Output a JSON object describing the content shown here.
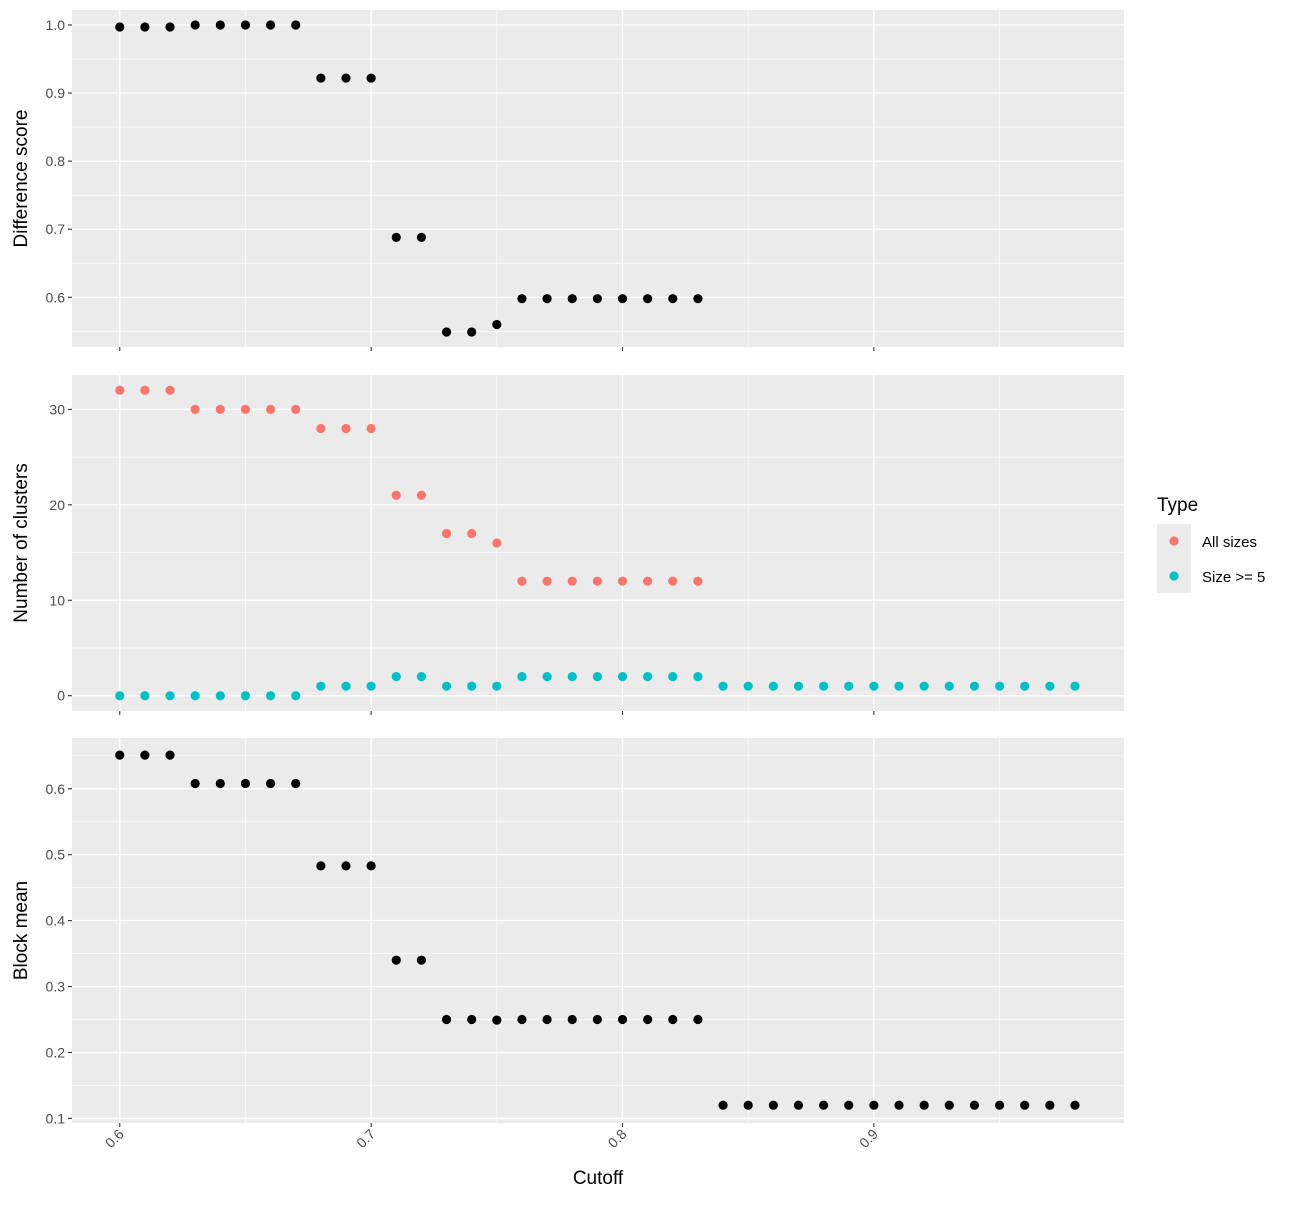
{
  "chart_data": {
    "type": "scatter",
    "xlabel": "Cutoff",
    "xlim": [
      0.581,
      0.9995
    ],
    "xticks": [
      0.6,
      0.7,
      0.8,
      0.9
    ],
    "x_tick_labels": [
      "0.6",
      "0.7",
      "0.8",
      "0.9"
    ],
    "grid": true,
    "legend": {
      "title": "Type",
      "placement": "right",
      "entries": [
        {
          "label": "All sizes",
          "color": "#F8766D"
        },
        {
          "label": "Size >= 5",
          "color": "#00BFC4"
        }
      ]
    },
    "panels": [
      {
        "id": "difference-score",
        "ylabel": "Difference score",
        "ylim": [
          0.527,
          1.022
        ],
        "yticks": [
          0.6,
          0.7,
          0.8,
          0.9,
          1.0
        ],
        "y_tick_labels": [
          "0.6",
          "0.7",
          "0.8",
          "0.9",
          "1.0"
        ],
        "series": [
          {
            "color": "#000000",
            "x": [
              0.6,
              0.61,
              0.62,
              0.63,
              0.64,
              0.65,
              0.66,
              0.67,
              0.68,
              0.69,
              0.7,
              0.71,
              0.72,
              0.73,
              0.74,
              0.75,
              0.76,
              0.77,
              0.78,
              0.79,
              0.8,
              0.81,
              0.82,
              0.83
            ],
            "y": [
              0.997,
              0.997,
              0.997,
              1.0,
              1.0,
              1.0,
              1.0,
              1.0,
              0.922,
              0.922,
              0.922,
              0.688,
              0.688,
              0.549,
              0.549,
              0.56,
              0.598,
              0.598,
              0.598,
              0.598,
              0.598,
              0.598,
              0.598,
              0.598
            ]
          }
        ]
      },
      {
        "id": "number-of-clusters",
        "ylabel": "Number of clusters",
        "ylim": [
          -1.6,
          33.6
        ],
        "yticks": [
          0,
          10,
          20,
          30
        ],
        "y_tick_labels": [
          "0",
          "10",
          "20",
          "30"
        ],
        "series": [
          {
            "name": "All sizes",
            "color": "#F8766D",
            "x": [
              0.6,
              0.61,
              0.62,
              0.63,
              0.64,
              0.65,
              0.66,
              0.67,
              0.68,
              0.69,
              0.7,
              0.71,
              0.72,
              0.73,
              0.74,
              0.75,
              0.76,
              0.77,
              0.78,
              0.79,
              0.8,
              0.81,
              0.82,
              0.83
            ],
            "y": [
              32,
              32,
              32,
              30,
              30,
              30,
              30,
              30,
              28,
              28,
              28,
              21,
              21,
              17,
              17,
              16,
              12,
              12,
              12,
              12,
              12,
              12,
              12,
              12
            ]
          },
          {
            "name": "Size >= 5",
            "color": "#00BFC4",
            "x": [
              0.6,
              0.61,
              0.62,
              0.63,
              0.64,
              0.65,
              0.66,
              0.67,
              0.68,
              0.69,
              0.7,
              0.71,
              0.72,
              0.73,
              0.74,
              0.75,
              0.76,
              0.77,
              0.78,
              0.79,
              0.8,
              0.81,
              0.82,
              0.83,
              0.84,
              0.85,
              0.86,
              0.87,
              0.88,
              0.89,
              0.9,
              0.91,
              0.92,
              0.93,
              0.94,
              0.95,
              0.96,
              0.97,
              0.98
            ],
            "y": [
              0,
              0,
              0,
              0,
              0,
              0,
              0,
              0,
              1,
              1,
              1,
              2,
              2,
              1,
              1,
              1,
              2,
              2,
              2,
              2,
              2,
              2,
              2,
              2,
              1,
              1,
              1,
              1,
              1,
              1,
              1,
              1,
              1,
              1,
              1,
              1,
              1,
              1,
              1
            ]
          }
        ]
      },
      {
        "id": "block-mean",
        "ylabel": "Block mean",
        "ylim": [
          0.093,
          0.677
        ],
        "yticks": [
          0.1,
          0.2,
          0.3,
          0.4,
          0.5,
          0.6
        ],
        "y_tick_labels": [
          "0.1",
          "0.2",
          "0.3",
          "0.4",
          "0.5",
          "0.6"
        ],
        "series": [
          {
            "color": "#000000",
            "x": [
              0.6,
              0.61,
              0.62,
              0.63,
              0.64,
              0.65,
              0.66,
              0.67,
              0.68,
              0.69,
              0.7,
              0.71,
              0.72,
              0.73,
              0.74,
              0.75,
              0.76,
              0.77,
              0.78,
              0.79,
              0.8,
              0.81,
              0.82,
              0.83,
              0.84,
              0.85,
              0.86,
              0.87,
              0.88,
              0.89,
              0.9,
              0.91,
              0.92,
              0.93,
              0.94,
              0.95,
              0.96,
              0.97,
              0.98
            ],
            "y": [
              0.651,
              0.651,
              0.651,
              0.608,
              0.608,
              0.608,
              0.608,
              0.608,
              0.483,
              0.483,
              0.483,
              0.34,
              0.34,
              0.25,
              0.25,
              0.249,
              0.25,
              0.25,
              0.25,
              0.25,
              0.25,
              0.25,
              0.25,
              0.25,
              0.12,
              0.12,
              0.12,
              0.12,
              0.12,
              0.12,
              0.12,
              0.12,
              0.12,
              0.12,
              0.12,
              0.12,
              0.12,
              0.12,
              0.12
            ]
          }
        ]
      }
    ]
  }
}
